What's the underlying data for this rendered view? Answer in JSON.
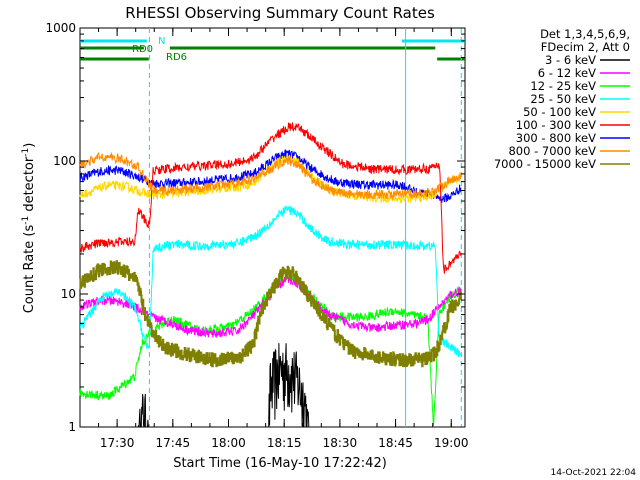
{
  "chart_data": {
    "type": "line",
    "title": "RHESSI Observing Summary Count Rates",
    "xlabel": "Start Time (16-May-10 17:22:42)",
    "ylabel_main": "Count Rate (s",
    "ylabel_sup1": "-1",
    "ylabel_mid": " detector",
    "ylabel_sup2": "-1",
    "ylabel_end": ")",
    "yscale": "log",
    "ylim": [
      1,
      1000
    ],
    "xlim_minutes": [
      -2.7,
      101.0
    ],
    "x_time_start": "17:22:42",
    "x_ticks": [
      {
        "label": "17:30",
        "min": 7.3
      },
      {
        "label": "17:45",
        "min": 22.3
      },
      {
        "label": "18:00",
        "min": 37.3
      },
      {
        "label": "18:15",
        "min": 52.3
      },
      {
        "label": "18:30",
        "min": 67.3
      },
      {
        "label": "18:45",
        "min": 82.3
      },
      {
        "label": "19:00",
        "min": 97.3
      }
    ],
    "y_ticks": [
      {
        "label": "1",
        "value": 1
      },
      {
        "label": "10",
        "value": 10
      },
      {
        "label": "100",
        "value": 100
      },
      {
        "label": "1000",
        "value": 1000
      }
    ],
    "legend": {
      "position": "right",
      "header1": "Det 1,3,4,5,6,9,",
      "header2": "FDecim 2, Att 0"
    },
    "flags": {
      "night_label": "N",
      "rd0_label": "RD0",
      "rd6_label": "RD6",
      "night_color": "#00e5ee",
      "rd_color": "#008000",
      "night_segments": [
        [
          -2.7,
          15.3
        ],
        [
          84.0,
          101.0
        ]
      ],
      "rd0_segments": [
        [
          -2.7,
          14.5
        ],
        [
          21.5,
          93.0
        ]
      ],
      "rd6_segments": [
        [
          -2.7,
          15.8
        ],
        [
          93.5,
          101.0
        ]
      ],
      "cyan_dashed_lines_min": [
        16.0,
        100.0
      ],
      "cyan_solid_lines_min": [
        85.0
      ]
    },
    "series": [
      {
        "name": "3 - 6 keV",
        "color": "#000000",
        "style": "spiky",
        "points": [
          [
            3,
            1
          ],
          [
            8,
            1
          ],
          [
            13,
            1
          ],
          [
            14.5,
            1.8
          ],
          [
            15.7,
            1.0
          ],
          [
            48,
            1
          ],
          [
            48.5,
            2.6
          ],
          [
            50,
            3.4
          ],
          [
            52,
            3.8
          ],
          [
            54,
            3.6
          ],
          [
            56,
            3.0
          ],
          [
            58,
            2.0
          ],
          [
            59,
            1
          ]
        ]
      },
      {
        "name": "6 - 12 keV",
        "color": "#ff00ff",
        "style": "noisy",
        "points": [
          [
            -2.7,
            8
          ],
          [
            3,
            9
          ],
          [
            8,
            8.8
          ],
          [
            12,
            8
          ],
          [
            16,
            6.8
          ],
          [
            20,
            6.3
          ],
          [
            26,
            5.4
          ],
          [
            33,
            5.0
          ],
          [
            40,
            5.3
          ],
          [
            45,
            7.4
          ],
          [
            50,
            11
          ],
          [
            53,
            13
          ],
          [
            56,
            12
          ],
          [
            60,
            9
          ],
          [
            64,
            7
          ],
          [
            70,
            6.0
          ],
          [
            76,
            5.5
          ],
          [
            82,
            5.8
          ],
          [
            88,
            6
          ],
          [
            91,
            6.4
          ],
          [
            94,
            8
          ],
          [
            97,
            9.8
          ],
          [
            100,
            10.6
          ]
        ]
      },
      {
        "name": "12 - 25 keV",
        "color": "#00ff00",
        "style": "noisy",
        "points": [
          [
            -2.7,
            1.8
          ],
          [
            5,
            1.7
          ],
          [
            12,
            2.4
          ],
          [
            14,
            4.2
          ],
          [
            16,
            5.0
          ],
          [
            18,
            5.6
          ],
          [
            22,
            6.5
          ],
          [
            30,
            5.3
          ],
          [
            38,
            5.7
          ],
          [
            44,
            7.5
          ],
          [
            48,
            10
          ],
          [
            52,
            14.5
          ],
          [
            55,
            13.5
          ],
          [
            58,
            11
          ],
          [
            62,
            8.2
          ],
          [
            66,
            6.7
          ],
          [
            74,
            6.7
          ],
          [
            82,
            7.5
          ],
          [
            88,
            6.8
          ],
          [
            91,
            6.6
          ],
          [
            92.5,
            1.0
          ],
          [
            94,
            7.0
          ],
          [
            97,
            9.5
          ],
          [
            100,
            11
          ]
        ]
      },
      {
        "name": "25 - 50 keV",
        "color": "#00ffff",
        "style": "noisy",
        "points": [
          [
            -2.7,
            5.5
          ],
          [
            3,
            9.4
          ],
          [
            8,
            10.4
          ],
          [
            12,
            8.0
          ],
          [
            15,
            4.3
          ],
          [
            16,
            3.8
          ],
          [
            17,
            22
          ],
          [
            22,
            23.5
          ],
          [
            30,
            23
          ],
          [
            40,
            24
          ],
          [
            45,
            28
          ],
          [
            50,
            37
          ],
          [
            53,
            44
          ],
          [
            56,
            40
          ],
          [
            60,
            30
          ],
          [
            64,
            25
          ],
          [
            70,
            23.5
          ],
          [
            80,
            23.5
          ],
          [
            88,
            23
          ],
          [
            93,
            23
          ],
          [
            94,
            4.6
          ],
          [
            97,
            4.0
          ],
          [
            100,
            3.5
          ]
        ]
      },
      {
        "name": "50 - 100 keV",
        "color": "#ffd700",
        "style": "noisy",
        "points": [
          [
            -2.7,
            55
          ],
          [
            5,
            66
          ],
          [
            10,
            64
          ],
          [
            14,
            58
          ],
          [
            17,
            55
          ],
          [
            22,
            57
          ],
          [
            30,
            60
          ],
          [
            38,
            63
          ],
          [
            44,
            68
          ],
          [
            50,
            95
          ],
          [
            53,
            106
          ],
          [
            56,
            97
          ],
          [
            60,
            74
          ],
          [
            66,
            58
          ],
          [
            74,
            53.5
          ],
          [
            84,
            52
          ],
          [
            92,
            54
          ],
          [
            95,
            63
          ],
          [
            98,
            72
          ],
          [
            100,
            75
          ]
        ]
      },
      {
        "name": "100 - 300 keV",
        "color": "#ff0000",
        "style": "noisy",
        "points": [
          [
            -2.7,
            22
          ],
          [
            3,
            24.4
          ],
          [
            8,
            24.6
          ],
          [
            12,
            24.8
          ],
          [
            13,
            43
          ],
          [
            15,
            35
          ],
          [
            16,
            32
          ],
          [
            17,
            85
          ],
          [
            22,
            88
          ],
          [
            30,
            92
          ],
          [
            38,
            95
          ],
          [
            44,
            105
          ],
          [
            50,
            155
          ],
          [
            54,
            182
          ],
          [
            57,
            172
          ],
          [
            62,
            130
          ],
          [
            68,
            95
          ],
          [
            76,
            87
          ],
          [
            86,
            86
          ],
          [
            92,
            88
          ],
          [
            94.2,
            94
          ],
          [
            95.2,
            15
          ],
          [
            97,
            17
          ],
          [
            100,
            20
          ]
        ]
      },
      {
        "name": "300 - 800 keV",
        "color": "#0000ff",
        "style": "noisy",
        "points": [
          [
            -2.7,
            75
          ],
          [
            3,
            84
          ],
          [
            8,
            85
          ],
          [
            13,
            76
          ],
          [
            17,
            68
          ],
          [
            22,
            68
          ],
          [
            30,
            70
          ],
          [
            38,
            74
          ],
          [
            44,
            80
          ],
          [
            50,
            105
          ],
          [
            53,
            114
          ],
          [
            56,
            106
          ],
          [
            60,
            86
          ],
          [
            66,
            70
          ],
          [
            74,
            66
          ],
          [
            84,
            66
          ],
          [
            88,
            58
          ],
          [
            92,
            56
          ],
          [
            95,
            52
          ],
          [
            97,
            54
          ],
          [
            100,
            63
          ]
        ]
      },
      {
        "name": "800 - 7000 keV",
        "color": "#ff8c00",
        "style": "noisy",
        "points": [
          [
            -2.7,
            92
          ],
          [
            3,
            108
          ],
          [
            8,
            104
          ],
          [
            13,
            90
          ],
          [
            17,
            60
          ],
          [
            22,
            60
          ],
          [
            30,
            63
          ],
          [
            38,
            67
          ],
          [
            44,
            73
          ],
          [
            50,
            92
          ],
          [
            53,
            102
          ],
          [
            56,
            94
          ],
          [
            60,
            72
          ],
          [
            66,
            58
          ],
          [
            74,
            56
          ],
          [
            84,
            56
          ],
          [
            92,
            58
          ],
          [
            95,
            66
          ],
          [
            98,
            74
          ],
          [
            100,
            78
          ]
        ]
      },
      {
        "name": "7000 - 15000 keV",
        "color": "#808000",
        "style": "step",
        "points": [
          [
            -2.7,
            12
          ],
          [
            3,
            15.5
          ],
          [
            8,
            15.8
          ],
          [
            12,
            13
          ],
          [
            13,
            11.5
          ],
          [
            15,
            6.5
          ],
          [
            17,
            5.0
          ],
          [
            20,
            4.0
          ],
          [
            26,
            3.5
          ],
          [
            33,
            3.2
          ],
          [
            40,
            3.3
          ],
          [
            44,
            4.2
          ],
          [
            46,
            7.5
          ],
          [
            48,
            9.6
          ],
          [
            52,
            14.5
          ],
          [
            55,
            14.2
          ],
          [
            58,
            10.5
          ],
          [
            62,
            7.2
          ],
          [
            66,
            5.0
          ],
          [
            70,
            3.8
          ],
          [
            76,
            3.4
          ],
          [
            84,
            3.2
          ],
          [
            90,
            3.2
          ],
          [
            93,
            3.6
          ],
          [
            95,
            5.0
          ],
          [
            97,
            7.8
          ],
          [
            100,
            9.5
          ]
        ]
      }
    ]
  },
  "timestamp": "14-Oct-2021 22:04"
}
